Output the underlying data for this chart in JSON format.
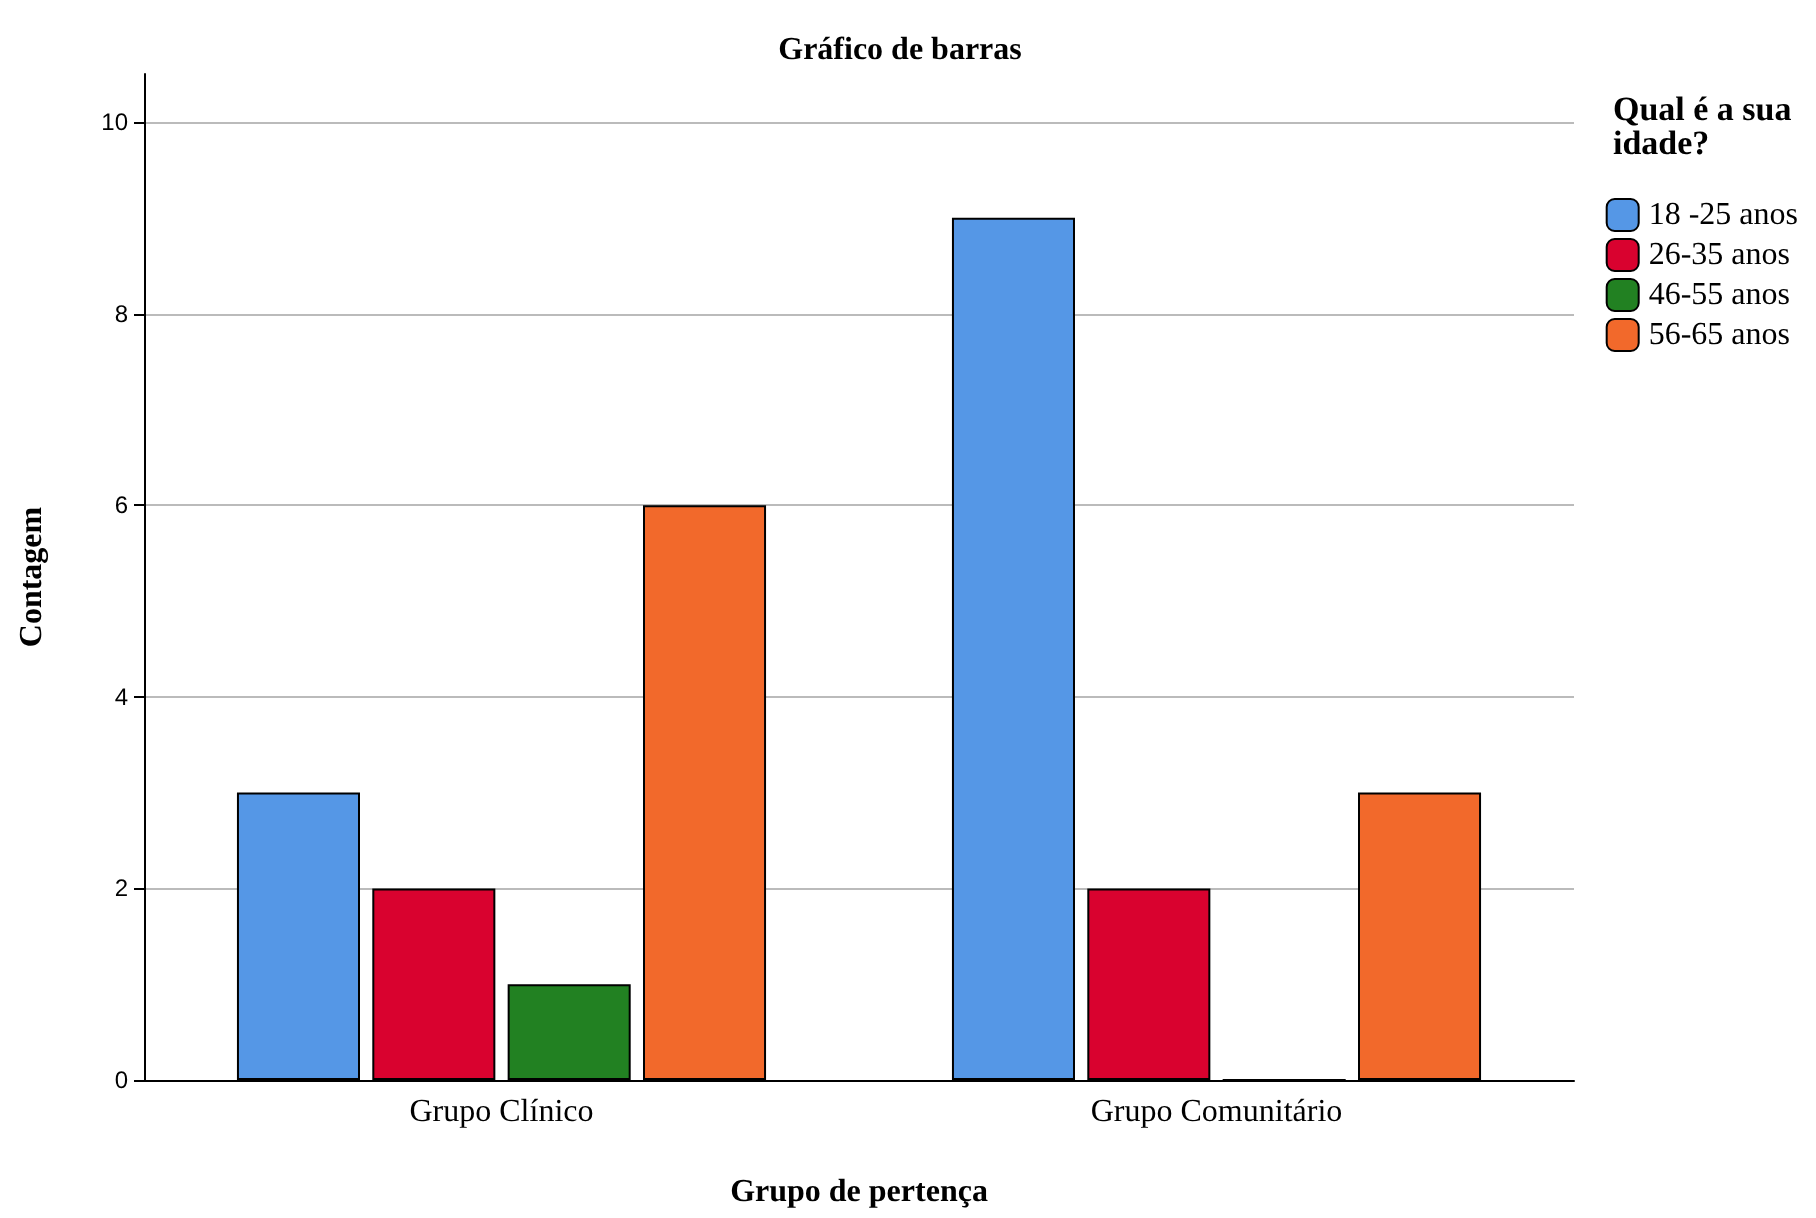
{
  "chart_data": {
    "type": "bar",
    "title": "Gráfico de barras",
    "xlabel": "Grupo de pertença",
    "ylabel": "Contagem",
    "legend_title": "Qual é a sua idade?",
    "categories": [
      "Grupo Clínico",
      "Grupo Comunitário"
    ],
    "series": [
      {
        "name": "18 -25 anos",
        "color": "#5597e6",
        "values": [
          3,
          9
        ]
      },
      {
        "name": "26-35 anos",
        "color": "#d9022f",
        "values": [
          2,
          2
        ]
      },
      {
        "name": "46-55 anos",
        "color": "#228122",
        "values": [
          1,
          0
        ]
      },
      {
        "name": "56-65 anos",
        "color": "#f2692b",
        "values": [
          6,
          3
        ]
      }
    ],
    "ylim": [
      0,
      10.5
    ],
    "yticks": [
      0,
      2,
      4,
      6,
      8,
      10
    ],
    "grid": "y",
    "legend": "top right"
  }
}
